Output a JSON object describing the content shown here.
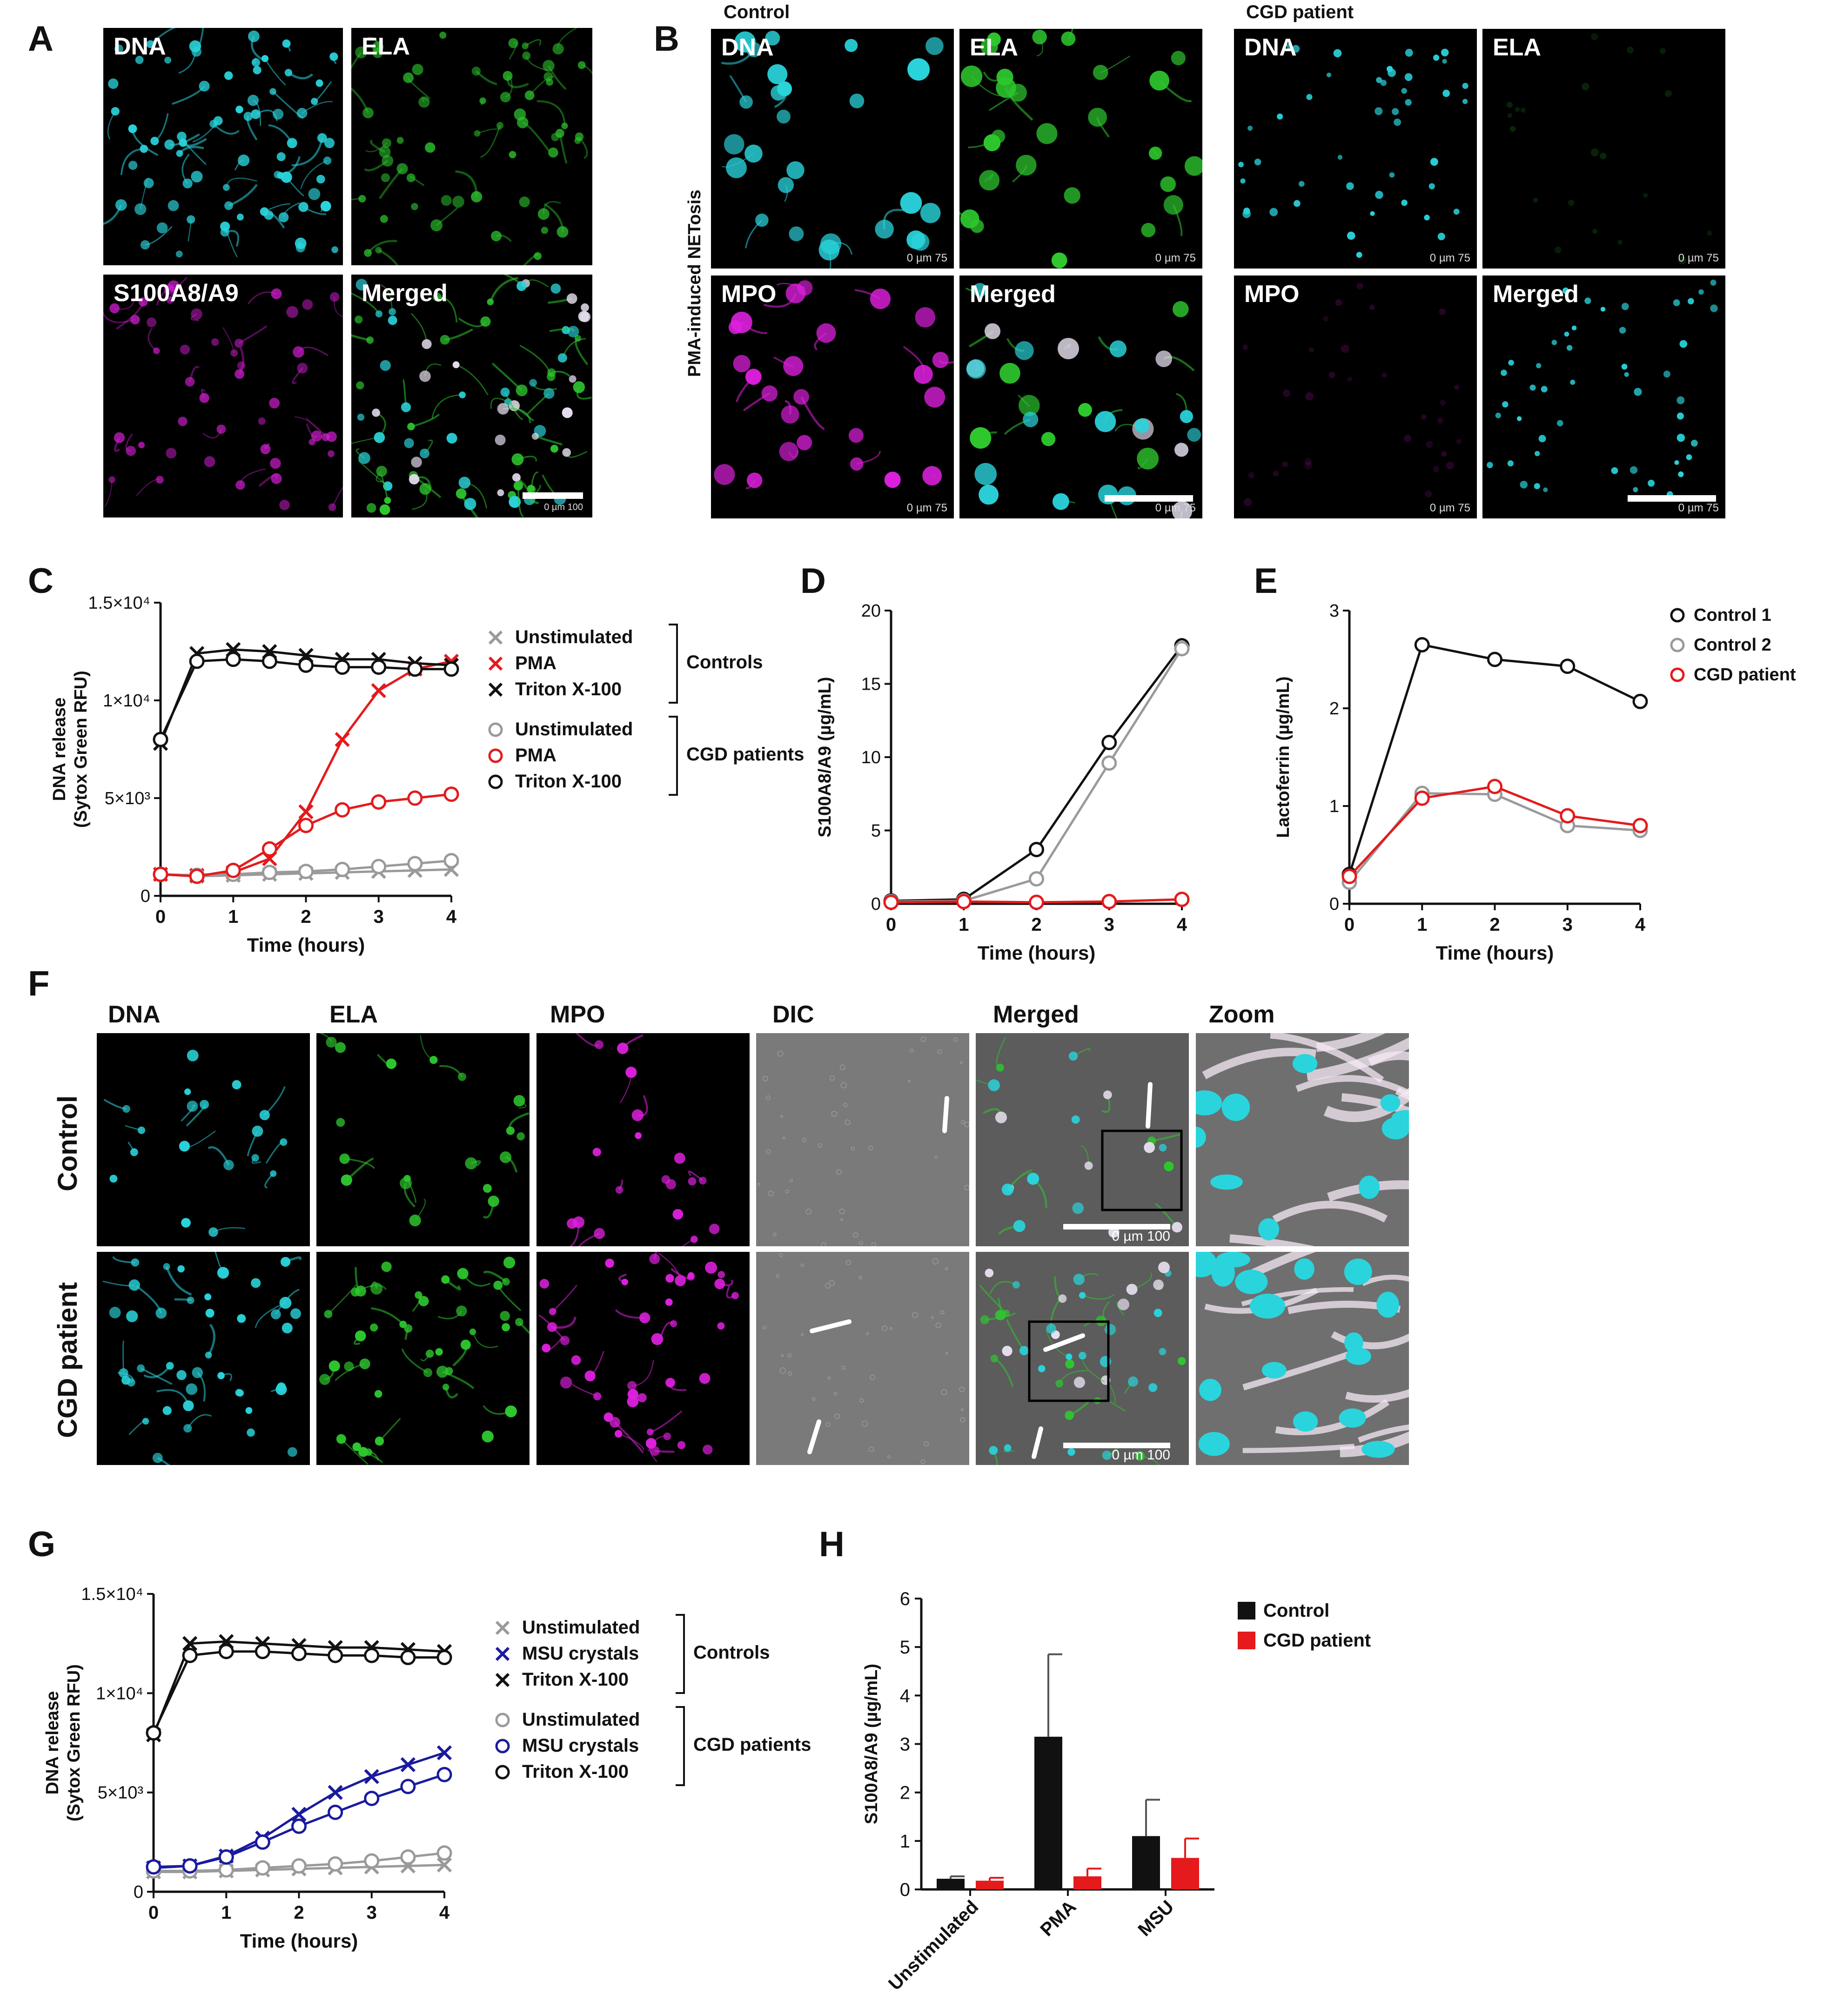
{
  "panels": {
    "A": {
      "letter": "A",
      "images": [
        {
          "label": "DNA"
        },
        {
          "label": "ELA"
        },
        {
          "label": "S100A8/A9"
        },
        {
          "label": "Merged",
          "scale": "0   µm   100"
        }
      ]
    },
    "B": {
      "letter": "B",
      "side_label": "PMA-induced NETosis",
      "groups": [
        {
          "title": "Control",
          "images": [
            {
              "label": "DNA",
              "scale": "0   µm   75"
            },
            {
              "label": "ELA",
              "scale": "0   µm   75"
            },
            {
              "label": "MPO",
              "scale": "0   µm   75"
            },
            {
              "label": "Merged",
              "scale": "0   µm   75"
            }
          ]
        },
        {
          "title": "CGD patient",
          "images": [
            {
              "label": "DNA",
              "scale": "0   µm   75"
            },
            {
              "label": "ELA",
              "scale": "0   µm   75"
            },
            {
              "label": "MPO",
              "scale": "0   µm   75"
            },
            {
              "label": "Merged",
              "scale": "0   µm   75"
            }
          ]
        }
      ]
    },
    "C": {
      "letter": "C"
    },
    "D": {
      "letter": "D"
    },
    "E": {
      "letter": "E"
    },
    "F": {
      "letter": "F",
      "columns": [
        "DNA",
        "ELA",
        "MPO",
        "DIC",
        "Merged",
        "Zoom"
      ],
      "rows": [
        "Control",
        "CGD patient"
      ],
      "scale": "0     µm     100"
    },
    "G": {
      "letter": "G"
    },
    "H": {
      "letter": "H"
    }
  },
  "colors": {
    "dna": "#2ad4dc",
    "ela": "#2ec82e",
    "mpo": "#e020e0",
    "red": "#e41a1c",
    "grey": "#9a9a9a",
    "black": "#111111",
    "blue": "#1a1a9e"
  },
  "chart_data": [
    {
      "id": "C",
      "type": "line",
      "ylabel": "DNA release\n(Sytox Green RFU)",
      "xlabel": "Time (hours)",
      "yticks": [
        "0",
        "5×10³",
        "1×10⁴",
        "1.5×10⁴"
      ],
      "ytick_values": [
        0,
        5000,
        10000,
        15000
      ],
      "xticks": [
        "0",
        "1",
        "2",
        "3",
        "4"
      ],
      "xlim": [
        0,
        4
      ],
      "ylim": [
        0,
        15000
      ],
      "x": [
        0,
        0.5,
        1,
        1.5,
        2,
        2.5,
        3,
        3.5,
        4
      ],
      "legend_groups": [
        {
          "bracket": "Controls",
          "items": [
            {
              "name": "Unstimulated",
              "marker": "x",
              "color": "#9a9a9a"
            },
            {
              "name": "PMA",
              "marker": "x",
              "color": "#e41a1c"
            },
            {
              "name": "Triton X-100",
              "marker": "x",
              "color": "#111111"
            }
          ]
        },
        {
          "bracket": "CGD patients",
          "items": [
            {
              "name": "Unstimulated",
              "marker": "o",
              "color": "#9a9a9a"
            },
            {
              "name": "PMA",
              "marker": "o",
              "color": "#e41a1c"
            },
            {
              "name": "Triton X-100",
              "marker": "o",
              "color": "#111111"
            }
          ]
        }
      ],
      "series": [
        {
          "name": "Unstimulated",
          "group": "Controls",
          "marker": "x",
          "color": "#9a9a9a",
          "values": [
            1100,
            1000,
            1050,
            1100,
            1150,
            1200,
            1250,
            1300,
            1350
          ]
        },
        {
          "name": "PMA",
          "group": "Controls",
          "marker": "x",
          "color": "#e41a1c",
          "values": [
            1100,
            1050,
            1200,
            1900,
            4300,
            8000,
            10500,
            11600,
            12000
          ]
        },
        {
          "name": "Triton X-100",
          "group": "Controls",
          "marker": "x",
          "color": "#111111",
          "values": [
            7800,
            12400,
            12600,
            12500,
            12300,
            12100,
            12100,
            11900,
            11800
          ]
        },
        {
          "name": "Unstimulated",
          "group": "CGD patients",
          "marker": "o",
          "color": "#9a9a9a",
          "values": [
            1100,
            1050,
            1100,
            1200,
            1250,
            1350,
            1500,
            1650,
            1800
          ]
        },
        {
          "name": "PMA",
          "group": "CGD patients",
          "marker": "o",
          "color": "#e41a1c",
          "values": [
            1100,
            1000,
            1300,
            2400,
            3600,
            4400,
            4800,
            5000,
            5200
          ]
        },
        {
          "name": "Triton X-100",
          "group": "CGD patients",
          "marker": "o",
          "color": "#111111",
          "values": [
            8000,
            12000,
            12100,
            12000,
            11800,
            11700,
            11700,
            11600,
            11600
          ]
        }
      ]
    },
    {
      "id": "D",
      "type": "line",
      "ylabel": "S100A8/A9 (µg/mL)",
      "xlabel": "Time (hours)",
      "yticks": [
        "0",
        "5",
        "10",
        "15",
        "20"
      ],
      "ytick_values": [
        0,
        5,
        10,
        15,
        20
      ],
      "xticks": [
        "0",
        "1",
        "2",
        "3",
        "4"
      ],
      "xlim": [
        0,
        4
      ],
      "ylim": [
        0,
        20
      ],
      "x": [
        0,
        1,
        2,
        3,
        4
      ],
      "series": [
        {
          "name": "Control 1",
          "marker": "o",
          "color": "#111111",
          "values": [
            0.2,
            0.3,
            3.7,
            11.0,
            17.6
          ]
        },
        {
          "name": "Control 2",
          "marker": "o",
          "color": "#9a9a9a",
          "values": [
            0.15,
            0.2,
            1.7,
            9.6,
            17.4
          ]
        },
        {
          "name": "CGD patient",
          "marker": "o",
          "color": "#e41a1c",
          "values": [
            0.1,
            0.15,
            0.1,
            0.15,
            0.3
          ]
        }
      ]
    },
    {
      "id": "E",
      "type": "line",
      "ylabel": "Lactoferrin (µg/mL)",
      "xlabel": "Time (hours)",
      "yticks": [
        "0",
        "1",
        "2",
        "3"
      ],
      "ytick_values": [
        0,
        1,
        2,
        3
      ],
      "xticks": [
        "0",
        "1",
        "2",
        "3",
        "4"
      ],
      "xlim": [
        0,
        4
      ],
      "ylim": [
        0,
        3
      ],
      "x": [
        0,
        1,
        2,
        3,
        4
      ],
      "legend": [
        "Control 1",
        "Control 2",
        "CGD patient"
      ],
      "series": [
        {
          "name": "Control 1",
          "marker": "o",
          "color": "#111111",
          "values": [
            0.3,
            2.65,
            2.5,
            2.43,
            2.07
          ]
        },
        {
          "name": "Control 2",
          "marker": "o",
          "color": "#9a9a9a",
          "values": [
            0.22,
            1.13,
            1.12,
            0.8,
            0.75
          ]
        },
        {
          "name": "CGD patient",
          "marker": "o",
          "color": "#e41a1c",
          "values": [
            0.28,
            1.08,
            1.2,
            0.9,
            0.8
          ]
        }
      ]
    },
    {
      "id": "G",
      "type": "line",
      "ylabel": "DNA release\n(Sytox Green RFU)",
      "xlabel": "Time (hours)",
      "yticks": [
        "0",
        "5×10³",
        "1×10⁴",
        "1.5×10⁴"
      ],
      "ytick_values": [
        0,
        5000,
        10000,
        15000
      ],
      "xticks": [
        "0",
        "1",
        "2",
        "3",
        "4"
      ],
      "xlim": [
        0,
        4
      ],
      "ylim": [
        0,
        15000
      ],
      "x": [
        0,
        0.5,
        1,
        1.5,
        2,
        2.5,
        3,
        3.5,
        4
      ],
      "legend_groups": [
        {
          "bracket": "Controls",
          "items": [
            {
              "name": "Unstimulated",
              "marker": "x",
              "color": "#9a9a9a"
            },
            {
              "name": "MSU crystals",
              "marker": "x",
              "color": "#1a1a9e"
            },
            {
              "name": "Triton X-100",
              "marker": "x",
              "color": "#111111"
            }
          ]
        },
        {
          "bracket": "CGD patients",
          "items": [
            {
              "name": "Unstimulated",
              "marker": "o",
              "color": "#9a9a9a"
            },
            {
              "name": "MSU crystals",
              "marker": "o",
              "color": "#1a1a9e"
            },
            {
              "name": "Triton X-100",
              "marker": "o",
              "color": "#111111"
            }
          ]
        }
      ],
      "series": [
        {
          "name": "Unstimulated",
          "group": "Controls",
          "marker": "x",
          "color": "#9a9a9a",
          "values": [
            1000,
            1000,
            1050,
            1100,
            1150,
            1200,
            1250,
            1300,
            1350
          ]
        },
        {
          "name": "MSU crystals",
          "group": "Controls",
          "marker": "x",
          "color": "#1a1a9e",
          "values": [
            1200,
            1300,
            1800,
            2700,
            3900,
            5000,
            5800,
            6400,
            7000
          ]
        },
        {
          "name": "Triton X-100",
          "group": "Controls",
          "marker": "x",
          "color": "#111111",
          "values": [
            7900,
            12500,
            12600,
            12500,
            12400,
            12300,
            12300,
            12200,
            12100
          ]
        },
        {
          "name": "Unstimulated",
          "group": "CGD patients",
          "marker": "o",
          "color": "#9a9a9a",
          "values": [
            1050,
            1050,
            1100,
            1200,
            1300,
            1400,
            1550,
            1750,
            1950
          ]
        },
        {
          "name": "MSU crystals",
          "group": "CGD patients",
          "marker": "o",
          "color": "#1a1a9e",
          "values": [
            1250,
            1300,
            1750,
            2500,
            3300,
            4000,
            4700,
            5300,
            5900
          ]
        },
        {
          "name": "Triton X-100",
          "group": "CGD patients",
          "marker": "o",
          "color": "#111111",
          "values": [
            8000,
            11900,
            12100,
            12100,
            12000,
            11900,
            11900,
            11800,
            11800
          ]
        }
      ]
    },
    {
      "id": "H",
      "type": "bar",
      "ylabel": "S100A8/A9 (µg/mL)",
      "categories": [
        "Unstimulated",
        "PMA",
        "MSU"
      ],
      "yticks": [
        "0",
        "1",
        "2",
        "3",
        "4",
        "5",
        "6"
      ],
      "ytick_values": [
        0,
        1,
        2,
        3,
        4,
        5,
        6
      ],
      "ylim": [
        0,
        6
      ],
      "legend": [
        "Control",
        "CGD patient"
      ],
      "series": [
        {
          "name": "Control",
          "color": "#111111",
          "values": [
            0.22,
            3.15,
            1.1
          ],
          "errors": [
            0.05,
            1.7,
            0.75
          ]
        },
        {
          "name": "CGD patient",
          "color": "#e41a1c",
          "values": [
            0.18,
            0.27,
            0.65
          ],
          "errors": [
            0.06,
            0.16,
            0.4
          ]
        }
      ]
    }
  ]
}
